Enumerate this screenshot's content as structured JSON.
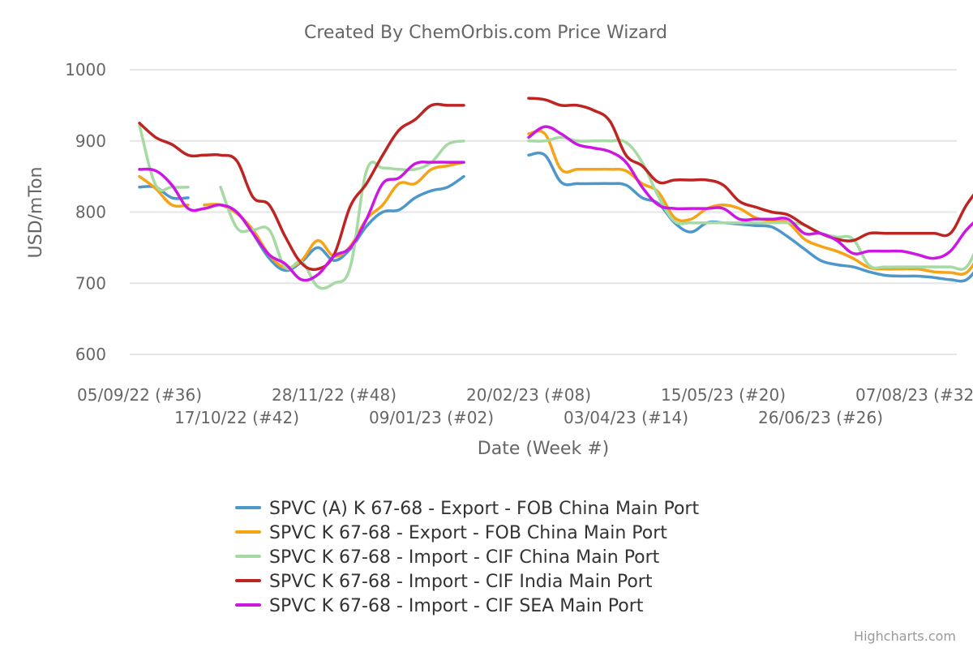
{
  "chart_data": {
    "type": "line",
    "title": "Created By ChemOrbis.com Price Wizard",
    "xlabel": "Date (Week #)",
    "ylabel": "USD/mTon",
    "ylim": [
      550,
      1000
    ],
    "yticks": [
      600,
      700,
      800,
      900,
      1000
    ],
    "grid": true,
    "legend_position": "bottom",
    "x_start": "05/09/22",
    "x_tick_step_weeks": 6,
    "x_tick_labels": [
      "05/09/22 (#36)",
      "17/10/22 (#42)",
      "28/11/22 (#48)",
      "09/01/23 (#02)",
      "20/02/23 (#08)",
      "03/04/23 (#14)",
      "15/05/23 (#20)",
      "26/06/23 (#26)",
      "07/08/23 (#32)"
    ],
    "series": [
      {
        "name": "SPVC (A) K 67-68 - Export - FOB China Main Port",
        "color": "#4e97c9",
        "segments": [
          [
            [
              0,
              835
            ],
            [
              1,
              835
            ],
            [
              2,
              820
            ],
            [
              3,
              820
            ]
          ],
          [
            [
              7,
              770
            ],
            [
              8,
              735
            ],
            [
              9,
              718
            ],
            [
              10,
              730
            ],
            [
              11,
              750
            ],
            [
              12,
              732
            ],
            [
              13,
              748
            ],
            [
              14,
              780
            ],
            [
              15,
              800
            ],
            [
              16,
              803
            ],
            [
              17,
              820
            ],
            [
              18,
              830
            ],
            [
              19,
              835
            ],
            [
              20,
              850
            ]
          ],
          [
            [
              24,
              880
            ],
            [
              25,
              880
            ],
            [
              26,
              842
            ],
            [
              27,
              840
            ],
            [
              28,
              840
            ],
            [
              29,
              840
            ],
            [
              30,
              838
            ],
            [
              31,
              820
            ],
            [
              32,
              812
            ],
            [
              33,
              785
            ],
            [
              34,
              772
            ],
            [
              35,
              785
            ],
            [
              36,
              785
            ],
            [
              37,
              783
            ],
            [
              38,
              781
            ],
            [
              39,
              779
            ],
            [
              40,
              765
            ],
            [
              41,
              748
            ],
            [
              42,
              732
            ],
            [
              43,
              726
            ],
            [
              44,
              723
            ],
            [
              45,
              716
            ],
            [
              46,
              711
            ],
            [
              47,
              710
            ],
            [
              48,
              710
            ],
            [
              49,
              708
            ],
            [
              50,
              705
            ],
            [
              51,
              705
            ],
            [
              52,
              730
            ],
            [
              53,
              745
            ],
            [
              54,
              768
            ],
            [
              55,
              795
            ],
            [
              56,
              805
            ],
            [
              57,
              805
            ],
            [
              58,
              805
            ]
          ]
        ]
      },
      {
        "name": "SPVC K 67-68 - Export - FOB China Main Port",
        "color": "#f7a316",
        "segments": [
          [
            [
              0,
              850
            ],
            [
              1,
              833
            ],
            [
              2,
              810
            ],
            [
              3,
              810
            ]
          ],
          [
            [
              4,
              810
            ],
            [
              5,
              810
            ],
            [
              6,
              798
            ],
            [
              7,
              775
            ],
            [
              8,
              740
            ],
            [
              9,
              722
            ],
            [
              10,
              732
            ],
            [
              11,
              760
            ],
            [
              12,
              738
            ],
            [
              13,
              752
            ],
            [
              14,
              790
            ],
            [
              15,
              810
            ],
            [
              16,
              840
            ],
            [
              17,
              840
            ],
            [
              18,
              860
            ],
            [
              19,
              865
            ],
            [
              20,
              870
            ]
          ],
          [
            [
              24,
              910
            ],
            [
              25,
              910
            ],
            [
              26,
              860
            ],
            [
              27,
              860
            ],
            [
              28,
              860
            ],
            [
              29,
              860
            ],
            [
              30,
              858
            ],
            [
              31,
              840
            ],
            [
              32,
              828
            ],
            [
              33,
              792
            ],
            [
              34,
              790
            ],
            [
              35,
              805
            ],
            [
              36,
              810
            ],
            [
              37,
              805
            ],
            [
              38,
              792
            ],
            [
              39,
              788
            ],
            [
              40,
              785
            ],
            [
              41,
              762
            ],
            [
              42,
              752
            ],
            [
              43,
              745
            ],
            [
              44,
              735
            ],
            [
              45,
              722
            ],
            [
              46,
              720
            ],
            [
              47,
              720
            ],
            [
              48,
              720
            ],
            [
              49,
              716
            ],
            [
              50,
              715
            ],
            [
              51,
              715
            ],
            [
              52,
              745
            ],
            [
              53,
              758
            ],
            [
              54,
              790
            ],
            [
              55,
              820
            ],
            [
              56,
              820
            ],
            [
              57,
              820
            ],
            [
              58,
              820
            ]
          ]
        ]
      },
      {
        "name": "SPVC K 67-68 - Import - CIF China Main Port",
        "color": "#a5dba2",
        "segments": [
          [
            [
              0,
              922
            ],
            [
              1,
              838
            ],
            [
              2,
              835
            ],
            [
              3,
              835
            ]
          ],
          [
            [
              5,
              835
            ],
            [
              6,
              778
            ],
            [
              7,
              775
            ],
            [
              8,
              775
            ],
            [
              9,
              722
            ],
            [
              10,
              730
            ],
            [
              11,
              695
            ],
            [
              12,
              700
            ],
            [
              13,
              723
            ],
            [
              14,
              858
            ],
            [
              15,
              862
            ],
            [
              16,
              860
            ],
            [
              17,
              860
            ],
            [
              18,
              870
            ],
            [
              19,
              895
            ],
            [
              20,
              900
            ]
          ],
          [
            [
              24,
              900
            ],
            [
              25,
              900
            ],
            [
              26,
              905
            ],
            [
              27,
              900
            ],
            [
              28,
              900
            ],
            [
              29,
              900
            ],
            [
              30,
              898
            ],
            [
              31,
              870
            ],
            [
              32,
              822
            ],
            [
              33,
              787
            ],
            [
              34,
              785
            ],
            [
              35,
              785
            ],
            [
              36,
              785
            ],
            [
              37,
              785
            ],
            [
              38,
              785
            ],
            [
              39,
              785
            ],
            [
              40,
              785
            ],
            [
              41,
              782
            ],
            [
              42,
              770
            ],
            [
              43,
              765
            ],
            [
              44,
              762
            ],
            [
              45,
              725
            ],
            [
              46,
              723
            ],
            [
              47,
              723
            ],
            [
              48,
              723
            ],
            [
              49,
              723
            ],
            [
              50,
              723
            ],
            [
              51,
              723
            ],
            [
              52,
              768
            ],
            [
              53,
              798
            ],
            [
              54,
              812
            ],
            [
              55,
              825
            ],
            [
              56,
              840
            ],
            [
              57,
              840
            ],
            [
              58,
              840
            ]
          ]
        ]
      },
      {
        "name": "SPVC K 67-68 - Import - CIF India Main Port",
        "color": "#bd2422",
        "segments": [
          [
            [
              0,
              925
            ],
            [
              1,
              905
            ],
            [
              2,
              895
            ],
            [
              3,
              880
            ],
            [
              4,
              880
            ],
            [
              5,
              880
            ],
            [
              6,
              872
            ],
            [
              7,
              821
            ],
            [
              8,
              810
            ],
            [
              9,
              765
            ],
            [
              10,
              728
            ],
            [
              11,
              720
            ],
            [
              12,
              740
            ],
            [
              13,
              808
            ],
            [
              14,
              840
            ],
            [
              15,
              880
            ],
            [
              16,
              915
            ],
            [
              17,
              930
            ],
            [
              18,
              950
            ],
            [
              19,
              950
            ],
            [
              20,
              950
            ]
          ],
          [
            [
              24,
              960
            ],
            [
              25,
              958
            ],
            [
              26,
              950
            ],
            [
              27,
              950
            ],
            [
              28,
              943
            ],
            [
              29,
              928
            ],
            [
              30,
              880
            ],
            [
              31,
              865
            ],
            [
              32,
              842
            ],
            [
              33,
              845
            ],
            [
              34,
              845
            ],
            [
              35,
              845
            ],
            [
              36,
              838
            ],
            [
              37,
              815
            ],
            [
              38,
              807
            ],
            [
              39,
              800
            ],
            [
              40,
              796
            ],
            [
              41,
              782
            ],
            [
              42,
              770
            ],
            [
              43,
              762
            ],
            [
              44,
              760
            ],
            [
              45,
              770
            ],
            [
              46,
              770
            ],
            [
              47,
              770
            ],
            [
              48,
              770
            ],
            [
              49,
              770
            ],
            [
              50,
              770
            ],
            [
              51,
              810
            ],
            [
              52,
              840
            ],
            [
              53,
              865
            ],
            [
              54,
              885
            ],
            [
              55,
              890
            ],
            [
              56,
              890
            ],
            [
              57,
              890
            ],
            [
              58,
              890
            ]
          ]
        ]
      },
      {
        "name": "SPVC K 67-68 - Import - CIF SEA Main Port",
        "color": "#cc17e3",
        "segments": [
          [
            [
              0,
              860
            ],
            [
              1,
              858
            ],
            [
              2,
              838
            ],
            [
              3,
              805
            ],
            [
              4,
              805
            ],
            [
              5,
              810
            ],
            [
              6,
              800
            ],
            [
              7,
              770
            ],
            [
              8,
              740
            ],
            [
              9,
              727
            ],
            [
              10,
              705
            ],
            [
              11,
              712
            ],
            [
              12,
              738
            ],
            [
              13,
              750
            ],
            [
              14,
              790
            ],
            [
              15,
              840
            ],
            [
              16,
              848
            ],
            [
              17,
              868
            ],
            [
              18,
              870
            ],
            [
              19,
              870
            ],
            [
              20,
              870
            ]
          ],
          [
            [
              24,
              905
            ],
            [
              25,
              920
            ],
            [
              26,
              910
            ],
            [
              27,
              895
            ],
            [
              28,
              890
            ],
            [
              29,
              885
            ],
            [
              30,
              870
            ],
            [
              31,
              835
            ],
            [
              32,
              810
            ],
            [
              33,
              805
            ],
            [
              34,
              805
            ],
            [
              35,
              805
            ],
            [
              36,
              805
            ],
            [
              37,
              790
            ],
            [
              38,
              790
            ],
            [
              39,
              790
            ],
            [
              40,
              790
            ],
            [
              41,
              770
            ],
            [
              42,
              770
            ],
            [
              43,
              760
            ],
            [
              44,
              742
            ],
            [
              45,
              745
            ],
            [
              46,
              745
            ],
            [
              47,
              745
            ],
            [
              48,
              740
            ],
            [
              49,
              735
            ],
            [
              50,
              745
            ],
            [
              51,
              775
            ],
            [
              52,
              795
            ],
            [
              53,
              805
            ],
            [
              54,
              835
            ],
            [
              55,
              850
            ],
            [
              56,
              850
            ],
            [
              57,
              850
            ]
          ]
        ]
      }
    ]
  },
  "credits": "Highcharts.com"
}
